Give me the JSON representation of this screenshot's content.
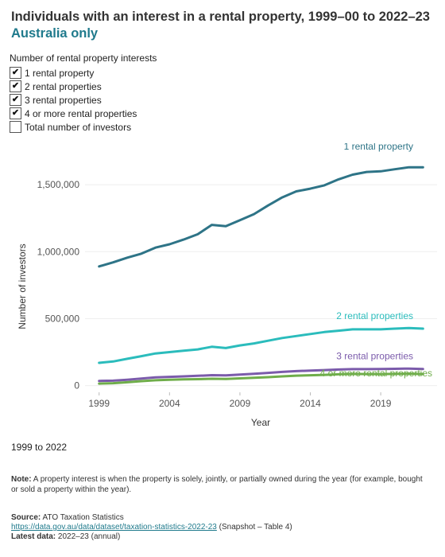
{
  "header": {
    "title": "Individuals with an interest in a rental property, 1999–00 to 2022–23",
    "subtitle": "Australia only"
  },
  "filter": {
    "title": "Number of rental property interests",
    "items": [
      {
        "label": "1 rental property",
        "checked": true
      },
      {
        "label": "2 rental properties",
        "checked": true
      },
      {
        "label": "3 rental properties",
        "checked": true
      },
      {
        "label": "4 or more rental properties",
        "checked": true
      },
      {
        "label": "Total number of investors",
        "checked": false
      }
    ]
  },
  "range_text": "1999 to 2022",
  "note": {
    "label": "Note:",
    "text": "A property interest is when the property is solely, jointly, or partially owned during the year (for example, bought or sold a property within the year)."
  },
  "source": {
    "label": "Source:",
    "text": "ATO Taxation Statistics",
    "link": "https://data.gov.au/data/dataset/taxation-statistics-2022-23",
    "link_suffix": "(Snapshot – Table 4)",
    "latest_label": "Latest data:",
    "latest_text": "2022–23 (annual)"
  },
  "chart_data": {
    "type": "line",
    "xlabel": "Year",
    "ylabel": "Number of investors",
    "xlim": [
      1998,
      2023
    ],
    "ylim": [
      -50000,
      1750000
    ],
    "x_ticks": [
      1999,
      2004,
      2009,
      2014,
      2019
    ],
    "y_ticks": [
      0,
      500000,
      1000000,
      1500000
    ],
    "y_tick_labels": [
      "0",
      "500,000",
      "1,000,000",
      "1,500,000"
    ],
    "grid": true,
    "x": [
      1999,
      2000,
      2001,
      2002,
      2003,
      2004,
      2005,
      2006,
      2007,
      2008,
      2009,
      2010,
      2011,
      2012,
      2013,
      2014,
      2015,
      2016,
      2017,
      2018,
      2019,
      2020,
      2021,
      2022
    ],
    "series": [
      {
        "name": "1 rental property",
        "color": "#2e7487",
        "values": [
          890000,
          920000,
          955000,
          985000,
          1030000,
          1055000,
          1090000,
          1130000,
          1200000,
          1190000,
          1235000,
          1280000,
          1345000,
          1405000,
          1450000,
          1470000,
          1495000,
          1540000,
          1575000,
          1595000,
          1600000,
          1615000,
          1630000,
          1630000
        ]
      },
      {
        "name": "2 rental properties",
        "color": "#2bbcbc",
        "values": [
          170000,
          180000,
          200000,
          220000,
          240000,
          250000,
          260000,
          270000,
          290000,
          280000,
          300000,
          315000,
          335000,
          355000,
          370000,
          385000,
          400000,
          410000,
          420000,
          420000,
          420000,
          425000,
          430000,
          425000
        ]
      },
      {
        "name": "3 rental properties",
        "color": "#7b5bab",
        "values": [
          35000,
          37000,
          44000,
          53000,
          61000,
          65000,
          69000,
          73000,
          78000,
          76000,
          82000,
          88000,
          95000,
          102000,
          108000,
          112000,
          116000,
          120000,
          123000,
          123000,
          124000,
          125000,
          127000,
          124000
        ]
      },
      {
        "name": "4 or more rental properties",
        "color": "#6fad4a",
        "values": [
          15000,
          18000,
          25000,
          33000,
          40000,
          43000,
          46000,
          48000,
          51000,
          50000,
          54000,
          58000,
          63000,
          69000,
          74000,
          77000,
          80000,
          84000,
          87000,
          86000,
          86000,
          87000,
          89000,
          86000
        ]
      }
    ]
  }
}
